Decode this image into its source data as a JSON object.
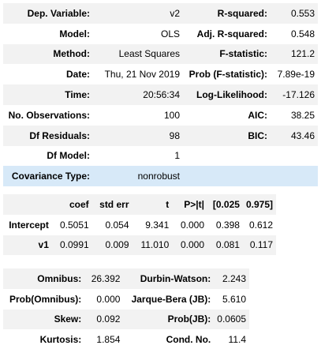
{
  "summary": {
    "rows": [
      {
        "l1": "Dep. Variable:",
        "v1": "v2",
        "l2": "R-squared:",
        "v2": "0.553"
      },
      {
        "l1": "Model:",
        "v1": "OLS",
        "l2": "Adj. R-squared:",
        "v2": "0.548"
      },
      {
        "l1": "Method:",
        "v1": "Least Squares",
        "l2": "F-statistic:",
        "v2": "121.2"
      },
      {
        "l1": "Date:",
        "v1": "Thu, 21 Nov 2019",
        "l2": "Prob (F-statistic):",
        "v2": "7.89e-19"
      },
      {
        "l1": "Time:",
        "v1": "20:56:34",
        "l2": "Log-Likelihood:",
        "v2": "-17.126"
      },
      {
        "l1": "No. Observations:",
        "v1": "100",
        "l2": "AIC:",
        "v2": "38.25"
      },
      {
        "l1": "Df Residuals:",
        "v1": "98",
        "l2": "BIC:",
        "v2": "43.46"
      },
      {
        "l1": "Df Model:",
        "v1": "1",
        "l2": "",
        "v2": ""
      },
      {
        "l1": "Covariance Type:",
        "v1": "nonrobust",
        "l2": "",
        "v2": ""
      }
    ]
  },
  "coefficients": {
    "headers": [
      "",
      "coef",
      "std err",
      "t",
      "P>|t|",
      "[0.025",
      "0.975]"
    ],
    "rows": [
      [
        "Intercept",
        "0.5051",
        "0.054",
        "9.341",
        "0.000",
        "0.398",
        "0.612"
      ],
      [
        "v1",
        "0.0991",
        "0.009",
        "11.010",
        "0.000",
        "0.081",
        "0.117"
      ]
    ]
  },
  "diagnostics": {
    "rows": [
      {
        "l1": "Omnibus:",
        "v1": "26.392",
        "l2": "Durbin-Watson:",
        "v2": "2.243"
      },
      {
        "l1": "Prob(Omnibus):",
        "v1": "0.000",
        "l2": "Jarque-Bera (JB):",
        "v2": "5.610"
      },
      {
        "l1": "Skew:",
        "v1": "0.092",
        "l2": "Prob(JB):",
        "v2": "0.0605"
      },
      {
        "l1": "Kurtosis:",
        "v1": "1.854",
        "l2": "Cond. No.",
        "v2": "11.4"
      }
    ]
  }
}
